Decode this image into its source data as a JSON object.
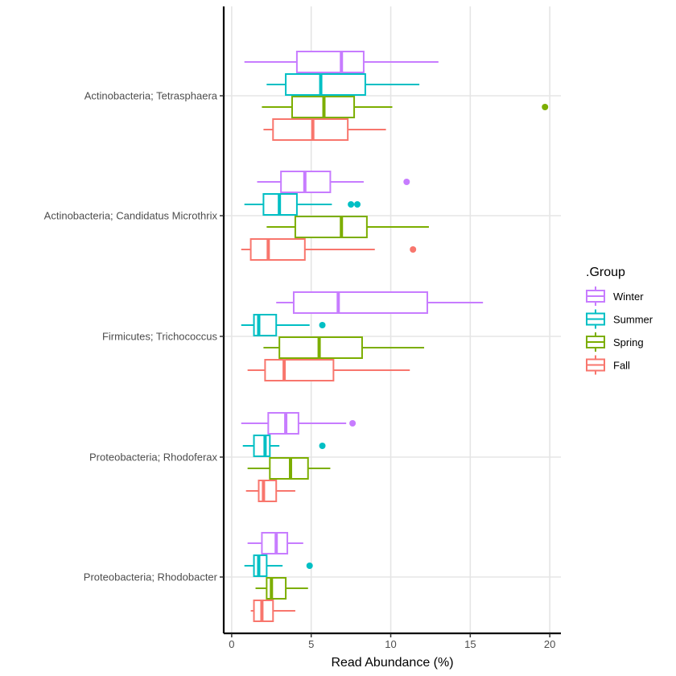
{
  "chart_data": {
    "type": "boxplot-horizontal",
    "title": "",
    "xlabel": "Read Abundance (%)",
    "ylabel": "",
    "xlim": [
      -0.5,
      20.7
    ],
    "xticks": [
      0,
      5,
      10,
      15,
      20
    ],
    "xtick_labels": [
      "0",
      "5",
      "10",
      "15",
      "20"
    ],
    "grid": true,
    "legend_title": ".Group",
    "legend_position": "right",
    "categories": [
      "Actinobacteria; Tetrasphaera",
      "Actinobacteria; Candidatus Microthrix",
      "Firmicutes; Trichococcus",
      "Proteobacteria; Rhodoferax",
      "Proteobacteria; Rhodobacter"
    ],
    "series": [
      {
        "name": "Winter",
        "color": "#C77CFF",
        "boxes": [
          {
            "min": 0.8,
            "q1": 4.1,
            "median": 6.9,
            "q3": 8.3,
            "max": 13.0,
            "outliers": []
          },
          {
            "min": 1.6,
            "q1": 3.1,
            "median": 4.6,
            "q3": 6.2,
            "max": 8.3,
            "outliers": [
              11.0
            ]
          },
          {
            "min": 2.8,
            "q1": 3.9,
            "median": 6.7,
            "q3": 12.3,
            "max": 15.8,
            "outliers": []
          },
          {
            "min": 0.6,
            "q1": 2.3,
            "median": 3.4,
            "q3": 4.2,
            "max": 7.2,
            "outliers": [
              7.6
            ]
          },
          {
            "min": 1.0,
            "q1": 1.9,
            "median": 2.8,
            "q3": 3.5,
            "max": 4.5,
            "outliers": []
          }
        ]
      },
      {
        "name": "Summer",
        "color": "#00BFC4",
        "boxes": [
          {
            "min": 2.2,
            "q1": 3.4,
            "median": 5.6,
            "q3": 8.4,
            "max": 11.8,
            "outliers": []
          },
          {
            "min": 0.8,
            "q1": 2.0,
            "median": 3.0,
            "q3": 4.1,
            "max": 6.3,
            "outliers": [
              7.5,
              7.9
            ]
          },
          {
            "min": 0.6,
            "q1": 1.4,
            "median": 1.7,
            "q3": 2.8,
            "max": 4.9,
            "outliers": [
              5.7
            ]
          },
          {
            "min": 0.7,
            "q1": 1.4,
            "median": 2.1,
            "q3": 2.4,
            "max": 3.0,
            "outliers": [
              5.7
            ]
          },
          {
            "min": 0.8,
            "q1": 1.4,
            "median": 1.7,
            "q3": 2.2,
            "max": 3.2,
            "outliers": [
              4.9
            ]
          }
        ]
      },
      {
        "name": "Spring",
        "color": "#7CAE00",
        "boxes": [
          {
            "min": 1.9,
            "q1": 3.8,
            "median": 5.8,
            "q3": 7.7,
            "max": 10.1,
            "outliers": [
              19.7
            ]
          },
          {
            "min": 2.2,
            "q1": 4.0,
            "median": 6.9,
            "q3": 8.5,
            "max": 12.4,
            "outliers": []
          },
          {
            "min": 2.0,
            "q1": 3.0,
            "median": 5.5,
            "q3": 8.2,
            "max": 12.1,
            "outliers": []
          },
          {
            "min": 1.0,
            "q1": 2.4,
            "median": 3.7,
            "q3": 4.8,
            "max": 6.2,
            "outliers": []
          },
          {
            "min": 1.5,
            "q1": 2.2,
            "median": 2.5,
            "q3": 3.4,
            "max": 4.8,
            "outliers": []
          }
        ]
      },
      {
        "name": "Fall",
        "color": "#F8766D",
        "boxes": [
          {
            "min": 2.0,
            "q1": 2.6,
            "median": 5.1,
            "q3": 7.3,
            "max": 9.7,
            "outliers": []
          },
          {
            "min": 0.6,
            "q1": 1.2,
            "median": 2.3,
            "q3": 4.6,
            "max": 9.0,
            "outliers": [
              11.4
            ]
          },
          {
            "min": 1.0,
            "q1": 2.1,
            "median": 3.3,
            "q3": 6.4,
            "max": 11.2,
            "outliers": []
          },
          {
            "min": 0.9,
            "q1": 1.7,
            "median": 2.0,
            "q3": 2.8,
            "max": 4.0,
            "outliers": []
          },
          {
            "min": 1.2,
            "q1": 1.4,
            "median": 1.9,
            "q3": 2.6,
            "max": 4.0,
            "outliers": []
          }
        ]
      }
    ]
  }
}
